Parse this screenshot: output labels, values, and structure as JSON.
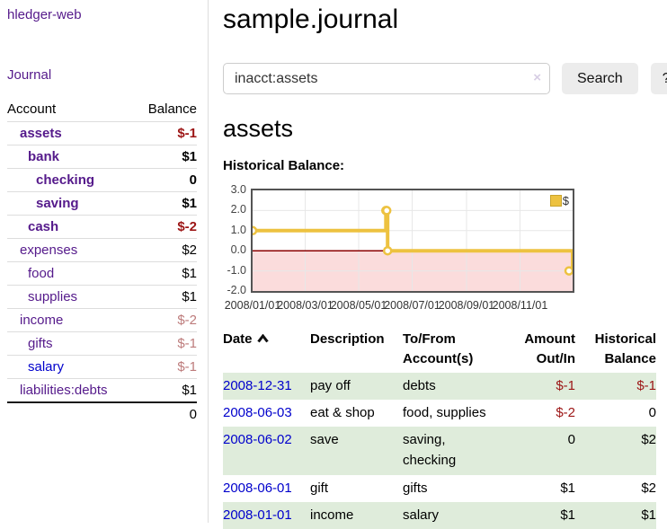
{
  "app": {
    "brand": "hledger-web"
  },
  "sidebar": {
    "journal_link": "Journal",
    "table_headers": {
      "account": "Account",
      "balance": "Balance"
    },
    "accounts": [
      {
        "name": "assets",
        "depth": 1,
        "bold": true,
        "balance": "$-1",
        "neg": "strong",
        "link": "visited"
      },
      {
        "name": "bank",
        "depth": 2,
        "bold": true,
        "balance": "$1",
        "neg": "none",
        "link": "visited"
      },
      {
        "name": "checking",
        "depth": 3,
        "bold": true,
        "balance": "0",
        "neg": "none",
        "link": "visited"
      },
      {
        "name": "saving",
        "depth": 3,
        "bold": true,
        "balance": "$1",
        "neg": "none",
        "link": "visited"
      },
      {
        "name": "cash",
        "depth": 2,
        "bold": true,
        "balance": "$-2",
        "neg": "strong",
        "link": "visited"
      },
      {
        "name": "expenses",
        "depth": 1,
        "bold": false,
        "balance": "$2",
        "neg": "none",
        "link": "visited"
      },
      {
        "name": "food",
        "depth": 2,
        "bold": false,
        "balance": "$1",
        "neg": "none",
        "link": "visited"
      },
      {
        "name": "supplies",
        "depth": 2,
        "bold": false,
        "balance": "$1",
        "neg": "none",
        "link": "visited"
      },
      {
        "name": "income",
        "depth": 1,
        "bold": false,
        "balance": "$-2",
        "neg": "soft",
        "link": "visited"
      },
      {
        "name": "gifts",
        "depth": 2,
        "bold": false,
        "balance": "$-1",
        "neg": "soft",
        "link": "visited"
      },
      {
        "name": "salary",
        "depth": 2,
        "bold": false,
        "balance": "$-1",
        "neg": "soft",
        "link": "unvisited"
      },
      {
        "name": "liabilities:debts",
        "depth": 1,
        "bold": false,
        "balance": "$1",
        "neg": "none",
        "link": "visited"
      }
    ],
    "total": "0"
  },
  "header": {
    "title": "sample.journal"
  },
  "search": {
    "value": "inacct:assets",
    "clear_icon": "×",
    "button_label": "Search",
    "help_label": "?"
  },
  "account_page": {
    "title": "assets",
    "chart_label": "Historical Balance:"
  },
  "chart_data": {
    "type": "line",
    "step": "after",
    "title": "Historical Balance:",
    "series": [
      {
        "name": "$",
        "color": "#edc240",
        "points": [
          [
            "2008-01-01",
            1.0
          ],
          [
            "2008-06-01",
            2.0
          ],
          [
            "2008-06-02",
            2.0
          ],
          [
            "2008-06-03",
            0.0
          ],
          [
            "2008-12-31",
            -1.0
          ]
        ]
      }
    ],
    "xlim": [
      "2008-01-01",
      "2008-12-31"
    ],
    "ylim": [
      -2.0,
      3.0
    ],
    "y_ticks": [
      "3.0",
      "2.0",
      "1.0",
      "0.0",
      "-1.0",
      "-2.0"
    ],
    "x_ticks": [
      {
        "label": "2008/01/01",
        "date": "2008-01-01"
      },
      {
        "label": "2008/03/01",
        "date": "2008-03-01"
      },
      {
        "label": "2008/05/01",
        "date": "2008-05-01"
      },
      {
        "label": "2008/07/01",
        "date": "2008-07-01"
      },
      {
        "label": "2008/09/01",
        "date": "2008-09-01"
      },
      {
        "label": "2008/11/01",
        "date": "2008-11-01"
      }
    ],
    "grid": true,
    "legend_position": "top-right",
    "colors": {
      "grid": "#e7e7e7",
      "zero_line": "#8b0000",
      "negative_region": "#fbdcdc",
      "plot_border": "#545454",
      "marker_fill": "#ffffff"
    }
  },
  "register": {
    "headers": {
      "date": "Date",
      "description": "Description",
      "accounts": "To/From Account(s)",
      "amount": "Amount Out/In",
      "balance": "Historical Balance"
    },
    "sort_icon": "chevron-up",
    "rows": [
      {
        "date": "2008-12-31",
        "description": "pay off",
        "accounts": "debts",
        "amount": "$-1",
        "amount_neg": true,
        "balance": "$-1",
        "balance_neg": true
      },
      {
        "date": "2008-06-03",
        "description": "eat & shop",
        "accounts": "food, supplies",
        "amount": "$-2",
        "amount_neg": true,
        "balance": "0",
        "balance_neg": false
      },
      {
        "date": "2008-06-02",
        "description": "save",
        "accounts": "saving, checking",
        "amount": "0",
        "amount_neg": false,
        "balance": "$2",
        "balance_neg": false
      },
      {
        "date": "2008-06-01",
        "description": "gift",
        "accounts": "gifts",
        "amount": "$1",
        "amount_neg": false,
        "balance": "$2",
        "balance_neg": false
      },
      {
        "date": "2008-01-01",
        "description": "income",
        "accounts": "salary",
        "amount": "$1",
        "amount_neg": false,
        "balance": "$1",
        "balance_neg": false
      }
    ]
  }
}
